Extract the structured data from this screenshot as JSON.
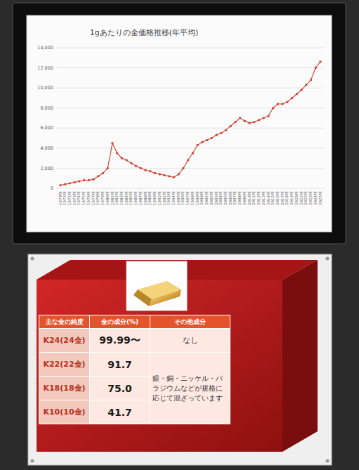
{
  "chart_data": {
    "type": "line",
    "title": "1gあたりの金価格推移(年平均)",
    "categories": [
      "1970年",
      "1971年",
      "1972年",
      "1973年",
      "1974年",
      "1975年",
      "1976年",
      "1977年",
      "1978年",
      "1979年",
      "1980年",
      "1981年",
      "1982年",
      "1983年",
      "1984年",
      "1985年",
      "1986年",
      "1987年",
      "1988年",
      "1989年",
      "1990年",
      "1991年",
      "1992年",
      "1993年",
      "1994年",
      "1995年",
      "1996年",
      "1997年",
      "1998年",
      "1999年",
      "2000年",
      "2001年",
      "2002年",
      "2003年",
      "2004年",
      "2005年",
      "2006年",
      "2007年",
      "2008年",
      "2009年",
      "2010年",
      "2011年",
      "2012年",
      "2013年",
      "2014年",
      "2015年",
      "2016年",
      "2017年",
      "2018年",
      "2019年",
      "2020年",
      "2021年",
      "2022年",
      "2023年",
      "2024年",
      "2025年"
    ],
    "values": [
      300,
      400,
      500,
      600,
      700,
      800,
      800,
      900,
      1200,
      1500,
      2000,
      4500,
      3500,
      3000,
      2800,
      2500,
      2200,
      2000,
      1800,
      1700,
      1500,
      1400,
      1300,
      1200,
      1100,
      1400,
      2000,
      2800,
      3500,
      4300,
      4600,
      4800,
      5000,
      5300,
      5500,
      5800,
      6200,
      6600,
      7000,
      6700,
      6500,
      6600,
      6800,
      7000,
      7200,
      8000,
      8400,
      8400,
      8600,
      9000,
      9400,
      9800,
      10300,
      10800,
      12000,
      12600
    ],
    "color": "#d04a3a",
    "marker": "circle",
    "line_style": "solid",
    "ylim": [
      0,
      14000
    ],
    "yticks": [
      0,
      {
        "value": 2000,
        "label": "2,000"
      },
      {
        "value": 4000,
        "label": "4,000"
      },
      {
        "value": 6000,
        "label": "6,000"
      },
      {
        "value": 8000,
        "label": "8,000"
      },
      {
        "value": 10000,
        "label": "10,000"
      },
      {
        "value": 12000,
        "label": "12,000"
      },
      {
        "value": 14000,
        "label": "14,000"
      }
    ],
    "grid": true
  },
  "table": {
    "header": [
      "主な金の純度",
      "金の成分(%)",
      "その他成分"
    ],
    "rows": [
      [
        "K24(24金)",
        "99.99〜",
        "なし"
      ],
      [
        "K22(22金)",
        "91.7"
      ],
      [
        "K18(18金)",
        "75.0"
      ],
      [
        "K10(10金)",
        "41.7"
      ]
    ],
    "shared_other": "銀・銅・ニッケル・パラジウムなどが規格に応じて混ざっています"
  }
}
